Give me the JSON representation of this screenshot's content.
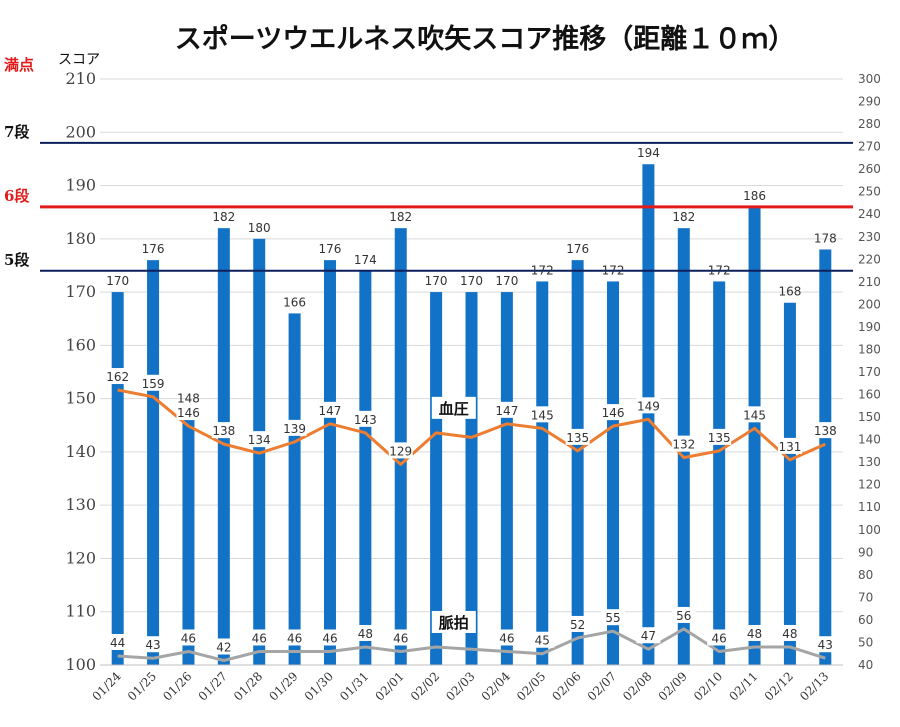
{
  "chart_data": {
    "type": "bar",
    "title": "スポーツウエルネス吹矢スコア推移（距離１０ｍ）",
    "y_unit_label": "スコア",
    "full_score_label": "満点",
    "categories": [
      "01/24",
      "01/25",
      "01/26",
      "01/27",
      "01/28",
      "01/29",
      "01/30",
      "01/31",
      "02/01",
      "02/02",
      "02/03",
      "02/04",
      "02/05",
      "02/06",
      "02/07",
      "02/08",
      "02/09",
      "02/10",
      "02/11",
      "02/12",
      "02/13"
    ],
    "ylim": [
      100,
      210
    ],
    "y_ticks": [
      "100",
      "110",
      "120",
      "130",
      "140",
      "150",
      "160",
      "170",
      "180",
      "190",
      "200",
      "210"
    ],
    "y2lim": [
      40,
      300
    ],
    "y2_ticks": [
      "40",
      "50",
      "60",
      "70",
      "80",
      "90",
      "100",
      "110",
      "120",
      "130",
      "140",
      "150",
      "160",
      "170",
      "180",
      "190",
      "200",
      "210",
      "220",
      "230",
      "240",
      "250",
      "260",
      "270",
      "280",
      "290",
      "300"
    ],
    "series": [
      {
        "kind": "bar",
        "axis": "left",
        "color": "#1272c6",
        "values": [
          170,
          176,
          148,
          182,
          180,
          166,
          176,
          174,
          182,
          170,
          170,
          170,
          172,
          176,
          172,
          194,
          182,
          172,
          186,
          168,
          178
        ],
        "labels": [
          "170",
          "176",
          "148",
          "182",
          "180",
          "166",
          "176",
          "174",
          "182",
          "170",
          "170",
          "170",
          "172",
          "176",
          "172",
          "194",
          "182",
          "172",
          "186",
          "168",
          "178"
        ]
      },
      {
        "kind": "line",
        "axis": "right",
        "name": "血圧",
        "color": "#ed7d31",
        "values": [
          162,
          159,
          146,
          138,
          134,
          139,
          147,
          143,
          129,
          143,
          141,
          147,
          145,
          135,
          146,
          149,
          132,
          135,
          145,
          131,
          138
        ],
        "labels": [
          "162",
          "159",
          "146",
          "138",
          "134",
          "139",
          "147",
          "143",
          "129",
          "",
          "",
          "147",
          "145",
          "135",
          "146",
          "149",
          "132",
          "135",
          "145",
          "131",
          "138"
        ]
      },
      {
        "kind": "line",
        "axis": "right",
        "name": "脈拍",
        "color": "#a5a5a5",
        "values": [
          44,
          43,
          46,
          42,
          46,
          46,
          46,
          48,
          46,
          48,
          47,
          46,
          45,
          52,
          55,
          47,
          56,
          46,
          48,
          48,
          43
        ],
        "labels": [
          "44",
          "43",
          "46",
          "42",
          "46",
          "46",
          "46",
          "48",
          "46",
          "",
          "",
          "46",
          "45",
          "52",
          "55",
          "47",
          "56",
          "46",
          "48",
          "48",
          "43"
        ]
      }
    ],
    "reference_lines": [
      {
        "label": "7段",
        "value": 198,
        "color": "#0b1f5c",
        "label_color": "#111111"
      },
      {
        "label": "6段",
        "value": 186,
        "color": "#e21b1b",
        "label_color": "#e21b1b"
      },
      {
        "label": "5段",
        "value": 174,
        "color": "#0b1f5c",
        "label_color": "#111111"
      }
    ],
    "full_score_color": "#e21b1b",
    "grid": true,
    "legend": "none"
  }
}
